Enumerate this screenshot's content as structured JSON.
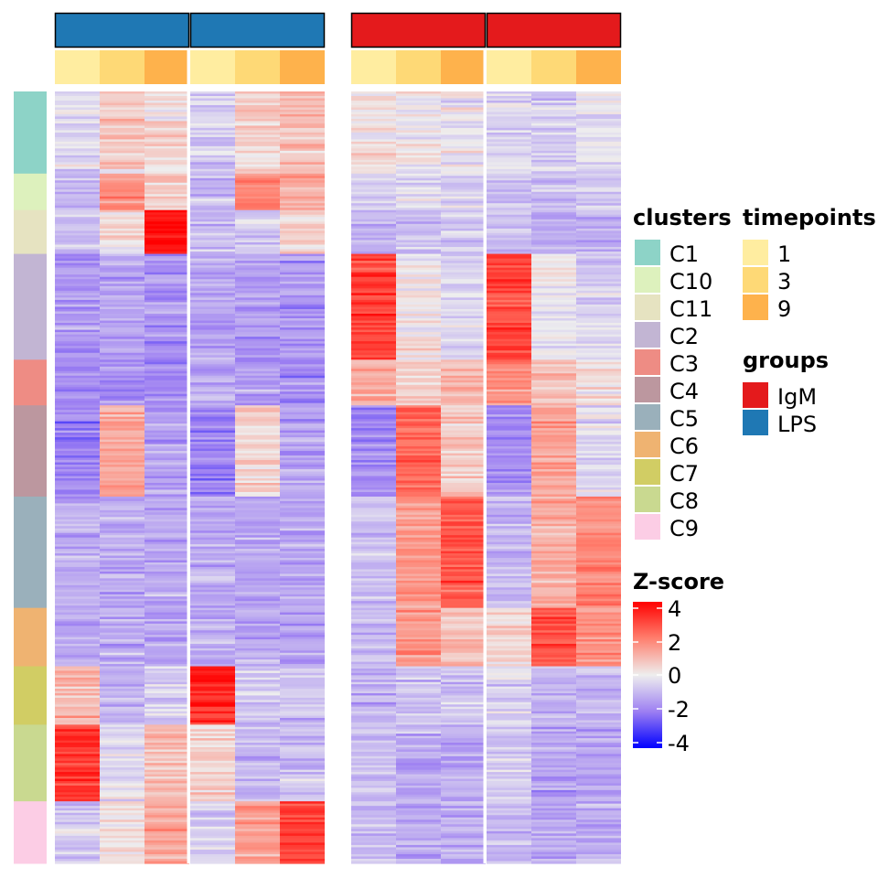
{
  "chart_data": {
    "type": "heatmap",
    "title": "",
    "xlabel": "",
    "ylabel": "",
    "columns": [
      {
        "group": "LPS",
        "timepoint": "1"
      },
      {
        "group": "LPS",
        "timepoint": "3"
      },
      {
        "group": "LPS",
        "timepoint": "9"
      },
      {
        "group": "LPS",
        "timepoint": "1"
      },
      {
        "group": "LPS",
        "timepoint": "3"
      },
      {
        "group": "LPS",
        "timepoint": "9"
      },
      {
        "group": "IgM",
        "timepoint": "1"
      },
      {
        "group": "IgM",
        "timepoint": "3"
      },
      {
        "group": "IgM",
        "timepoint": "9"
      },
      {
        "group": "IgM",
        "timepoint": "1"
      },
      {
        "group": "IgM",
        "timepoint": "3"
      },
      {
        "group": "IgM",
        "timepoint": "9"
      }
    ],
    "row_clusters": [
      {
        "name": "C1",
        "size": 90,
        "color": "#8DD3C7",
        "mean_z": [
          -0.4,
          0.6,
          0.3,
          -0.6,
          0.5,
          0.8,
          0.2,
          0.1,
          -0.1,
          -0.5,
          -0.6,
          -0.3
        ]
      },
      {
        "name": "C10",
        "size": 40,
        "color": "#DDF1BD",
        "mean_z": [
          -1.0,
          1.6,
          0.8,
          -1.0,
          2.0,
          1.2,
          -0.7,
          -0.5,
          -0.6,
          -0.9,
          -0.8,
          -0.8
        ]
      },
      {
        "name": "C11",
        "size": 48,
        "color": "#E6E3C1",
        "mean_z": [
          -0.8,
          0.3,
          4.0,
          -1.0,
          -0.6,
          0.6,
          -1.0,
          -1.0,
          -0.8,
          -1.0,
          -1.1,
          -1.0
        ]
      },
      {
        "name": "C2",
        "size": 116,
        "color": "#C2B5D3",
        "mean_z": [
          -1.6,
          -1.3,
          -1.6,
          -1.3,
          -1.4,
          -1.6,
          2.9,
          0.1,
          -0.4,
          2.9,
          -0.1,
          -0.5
        ]
      },
      {
        "name": "C3",
        "size": 50,
        "color": "#EE8C84",
        "mean_z": [
          -1.8,
          -1.8,
          -1.8,
          -1.3,
          -1.5,
          -1.8,
          1.2,
          0.6,
          1.0,
          1.8,
          0.9,
          0.2
        ]
      },
      {
        "name": "C4",
        "size": 100,
        "color": "#BC979F",
        "mean_z": [
          -1.9,
          1.3,
          -1.5,
          -2.0,
          0.5,
          -1.3,
          -1.8,
          2.4,
          0.6,
          -1.7,
          1.4,
          -0.3
        ]
      },
      {
        "name": "C5",
        "size": 122,
        "color": "#9AB0BB",
        "mean_z": [
          -1.2,
          -1.2,
          -1.2,
          -1.2,
          -1.3,
          -1.3,
          -0.8,
          1.4,
          2.6,
          -1.0,
          1.2,
          1.9
        ]
      },
      {
        "name": "C6",
        "size": 64,
        "color": "#EFB371",
        "mean_z": [
          -1.2,
          -1.1,
          -1.3,
          -1.2,
          -1.3,
          -1.3,
          -1.0,
          1.5,
          0.8,
          0.4,
          2.8,
          1.6
        ]
      },
      {
        "name": "C7",
        "size": 64,
        "color": "#D1CD64",
        "mean_z": [
          1.0,
          -1.1,
          -0.5,
          3.4,
          -0.7,
          -0.8,
          -1.1,
          -0.8,
          -0.8,
          -0.5,
          -1.0,
          -1.0
        ]
      },
      {
        "name": "C8",
        "size": 84,
        "color": "#C9D990",
        "mean_z": [
          3.2,
          -0.3,
          0.8,
          0.6,
          -1.0,
          -0.8,
          -0.9,
          -1.2,
          -1.2,
          -0.5,
          -1.3,
          -1.3
        ]
      },
      {
        "name": "C9",
        "size": 68,
        "color": "#FCCDE5",
        "mean_z": [
          -0.6,
          0.4,
          1.3,
          -0.6,
          1.3,
          3.0,
          -1.0,
          -1.2,
          -1.2,
          -1.0,
          -1.3,
          -1.1
        ]
      }
    ],
    "colorscale": {
      "stops": [
        -4,
        -2,
        0,
        2,
        4
      ],
      "colors": [
        "#0000FF",
        "#9D7FF2",
        "#EEEEEE",
        "#FF7F6E",
        "#FF0000"
      ]
    },
    "legends": {
      "clusters": {
        "title": "clusters",
        "items": [
          {
            "label": "C1",
            "color": "#8DD3C7"
          },
          {
            "label": "C10",
            "color": "#DDF1BD"
          },
          {
            "label": "C11",
            "color": "#E6E3C1"
          },
          {
            "label": "C2",
            "color": "#C2B5D3"
          },
          {
            "label": "C3",
            "color": "#EE8C84"
          },
          {
            "label": "C4",
            "color": "#BC979F"
          },
          {
            "label": "C5",
            "color": "#9AB0BB"
          },
          {
            "label": "C6",
            "color": "#EFB371"
          },
          {
            "label": "C7",
            "color": "#D1CD64"
          },
          {
            "label": "C8",
            "color": "#C9D990"
          },
          {
            "label": "C9",
            "color": "#FCCDE5"
          }
        ]
      },
      "timepoints": {
        "title": "timepoints",
        "items": [
          {
            "label": "1",
            "color": "#FFEDA0"
          },
          {
            "label": "3",
            "color": "#FED976"
          },
          {
            "label": "9",
            "color": "#FEB24C"
          }
        ]
      },
      "groups": {
        "title": "groups",
        "items": [
          {
            "label": "IgM",
            "color": "#E41A1C"
          },
          {
            "label": "LPS",
            "color": "#1F78B4"
          }
        ]
      },
      "zscore": {
        "title": "Z-score",
        "ticks": [
          "4",
          "2",
          "0",
          "-2",
          "-4"
        ]
      }
    }
  }
}
